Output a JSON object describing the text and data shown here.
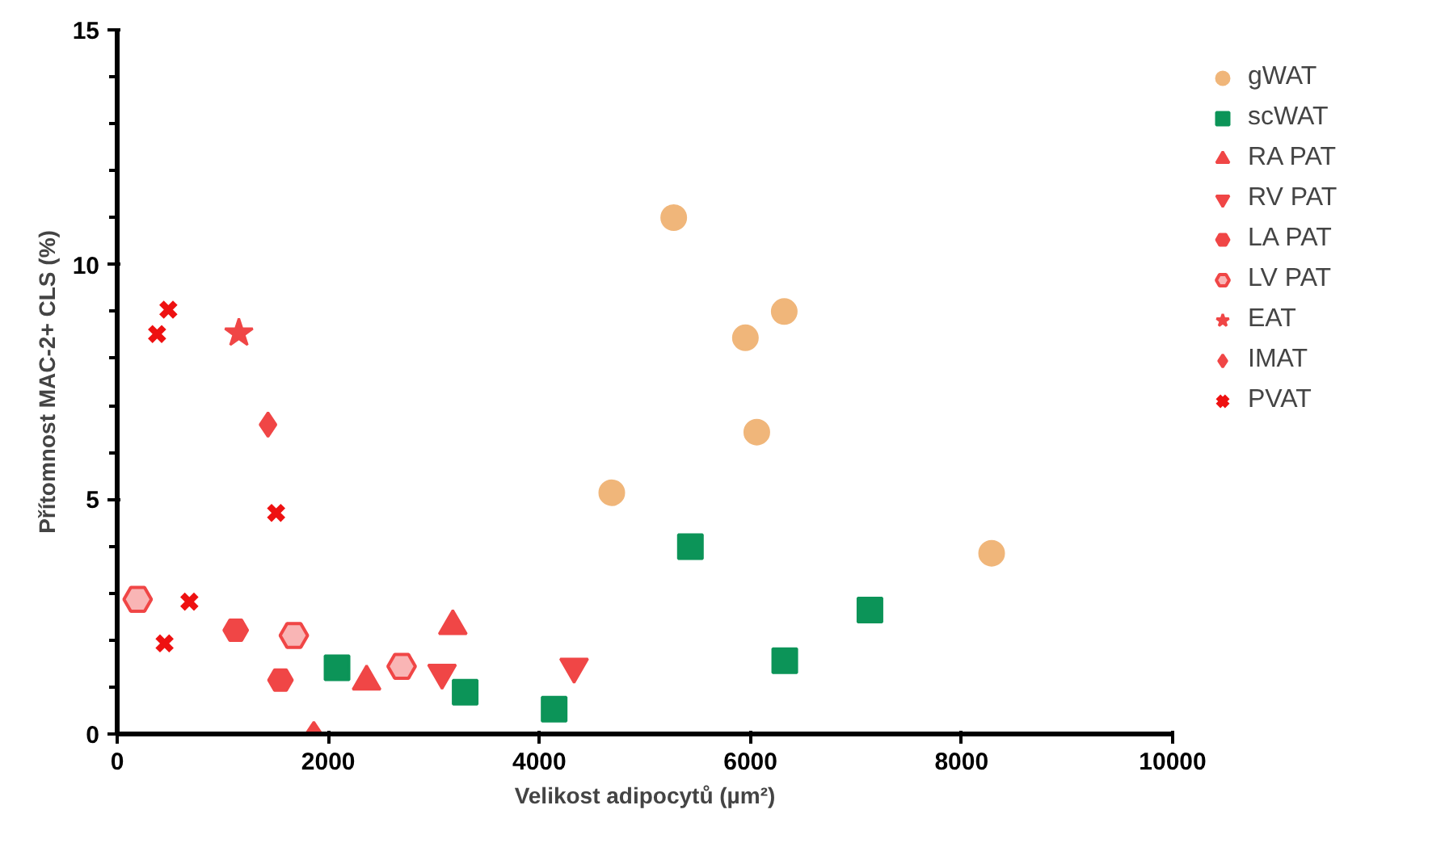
{
  "chart_data": {
    "type": "scatter",
    "xlabel": "Velikost adipocytů (µm²)",
    "ylabel": "Přítomnost MAC-2+ CLS (%)",
    "xlim": [
      0,
      10000
    ],
    "ylim": [
      0,
      15
    ],
    "xticks": [
      0,
      2000,
      4000,
      6000,
      8000,
      10000
    ],
    "yticks": [
      0,
      5,
      10,
      15
    ],
    "grid": false,
    "legend": "right",
    "series": [
      {
        "name": "gWAT",
        "color": "#f0b67a",
        "marker": "circle",
        "x": [
          5273,
          6320,
          5952,
          6060,
          4686,
          8285
        ],
        "values": [
          11.0,
          9.0,
          8.44,
          6.43,
          5.14,
          3.85
        ]
      },
      {
        "name": "scWAT",
        "color": "#0c9458",
        "marker": "square",
        "x": [
          5431,
          7132,
          6325,
          4140,
          2083,
          3297
        ],
        "values": [
          3.99,
          2.64,
          1.56,
          0.53,
          1.41,
          0.89
        ]
      },
      {
        "name": "RA PAT",
        "color": "#f04646",
        "marker": "triangle",
        "x": [
          2363,
          3180
        ],
        "values": [
          1.12,
          2.3
        ]
      },
      {
        "name": "RV PAT",
        "color": "#f04646",
        "x": [
          3078,
          4329
        ],
        "values": [
          1.3,
          1.43
        ]
      },
      {
        "name": "LA PAT",
        "color": "#f04646",
        "x": [
          1123,
          1547
        ],
        "values": [
          2.21,
          1.15
        ]
      },
      {
        "name": "LV PAT",
        "color": "#f04646",
        "x": [
          194,
          1674,
          2695
        ],
        "values": [
          2.87,
          2.1,
          1.44
        ]
      },
      {
        "name": "EAT",
        "color": "#f04646",
        "marker": "star",
        "x": [
          1153
        ],
        "values": [
          8.54
        ]
      },
      {
        "name": "IMAT",
        "color": "#f04646",
        "x": [
          1429,
          1863
        ],
        "values": [
          6.59,
          0
        ]
      },
      {
        "name": "PVAT",
        "color": "#ee1111",
        "marker": "cross",
        "x": [
          378,
          485,
          1506,
          684,
          449
        ],
        "values": [
          8.52,
          9.04,
          4.71,
          2.82,
          1.93
        ]
      }
    ]
  }
}
